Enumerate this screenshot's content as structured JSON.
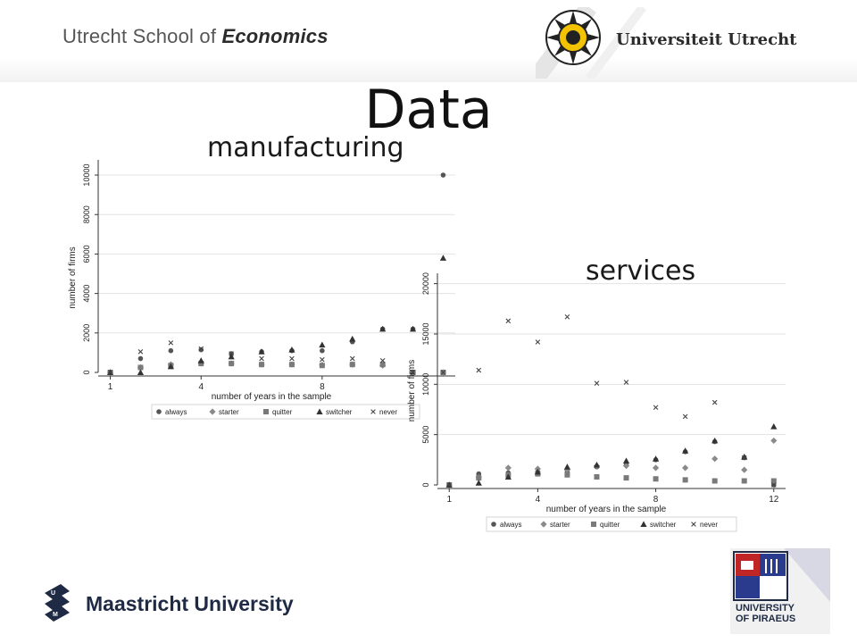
{
  "header": {
    "school_prefix": "Utrecht School of ",
    "school_emph": "Economics",
    "university": "Universiteit Utrecht"
  },
  "slide": {
    "title": "Data"
  },
  "footer": {
    "left_logo": "Maastricht University",
    "right_logo": "UNIVERSITY OF PIRAEUS"
  },
  "colors": {
    "marker": "#555555",
    "gridline": "#e3e3e3",
    "axis": "#333333"
  },
  "legend_markers": {
    "always": "dot",
    "starter": "diamond",
    "quitter": "square",
    "switcher": "triangle",
    "never": "cross"
  },
  "chart_data": [
    {
      "type": "scatter",
      "title": "manufacturing",
      "xlabel": "number of years in the sample",
      "ylabel": "number of firms",
      "xticks": [
        1,
        4,
        8
      ],
      "yticks": [
        0,
        2000,
        4000,
        6000,
        8000,
        10000
      ],
      "xlim": [
        0.6,
        12.4
      ],
      "ylim": [
        0,
        10500
      ],
      "grid": true,
      "legend_position": "bottom",
      "series": [
        {
          "name": "always",
          "x": [
            1,
            2,
            3,
            4,
            5,
            6,
            7,
            8,
            9,
            10,
            11,
            12
          ],
          "y": [
            0,
            700,
            1100,
            1150,
            950,
            1050,
            1100,
            1100,
            1550,
            2200,
            2200,
            10000
          ]
        },
        {
          "name": "starter",
          "x": [
            1,
            2,
            3,
            4,
            5,
            6,
            7,
            8,
            9,
            10,
            11,
            12
          ],
          "y": [
            0,
            250,
            400,
            450,
            450,
            400,
            400,
            380,
            400,
            350,
            0,
            0
          ]
        },
        {
          "name": "quitter",
          "x": [
            1,
            2,
            3,
            4,
            5,
            6,
            7,
            8,
            9,
            10,
            11,
            12
          ],
          "y": [
            0,
            250,
            350,
            450,
            450,
            400,
            400,
            350,
            400,
            400,
            0,
            0
          ]
        },
        {
          "name": "switcher",
          "x": [
            1,
            2,
            3,
            4,
            5,
            6,
            7,
            8,
            9,
            10,
            11,
            12
          ],
          "y": [
            0,
            0,
            300,
            600,
            800,
            1050,
            1150,
            1400,
            1700,
            2200,
            2200,
            5800
          ]
        },
        {
          "name": "never",
          "x": [
            1,
            2,
            3,
            4,
            5,
            6,
            7,
            8,
            9,
            10,
            11,
            12
          ],
          "y": [
            0,
            1050,
            1500,
            1200,
            950,
            700,
            700,
            650,
            700,
            600,
            0,
            0
          ]
        }
      ]
    },
    {
      "type": "scatter",
      "title": "services",
      "xlabel": "number of years in the sample",
      "ylabel": "number of firms",
      "xticks": [
        1,
        4,
        8,
        12
      ],
      "yticks": [
        0,
        5000,
        10000,
        15000,
        20000
      ],
      "xlim": [
        0.6,
        12.4
      ],
      "ylim": [
        0,
        20500
      ],
      "grid": true,
      "legend_position": "bottom",
      "series": [
        {
          "name": "always",
          "x": [
            1,
            2,
            3,
            4,
            5,
            6,
            7,
            8,
            9,
            10,
            11,
            12
          ],
          "y": [
            0,
            1100,
            1200,
            1300,
            1300,
            1800,
            2000,
            2500,
            3300,
            4300,
            2700,
            0
          ]
        },
        {
          "name": "starter",
          "x": [
            1,
            2,
            3,
            4,
            5,
            6,
            7,
            8,
            9,
            10,
            11,
            12
          ],
          "y": [
            0,
            750,
            1700,
            1600,
            1500,
            1900,
            1900,
            1700,
            1700,
            2600,
            1500,
            4400
          ]
        },
        {
          "name": "quitter",
          "x": [
            1,
            2,
            3,
            4,
            5,
            6,
            7,
            8,
            9,
            10,
            11,
            12
          ],
          "y": [
            0,
            700,
            1000,
            1100,
            1000,
            800,
            700,
            600,
            500,
            400,
            400,
            400
          ]
        },
        {
          "name": "switcher",
          "x": [
            1,
            2,
            3,
            4,
            5,
            6,
            7,
            8,
            9,
            10,
            11,
            12
          ],
          "y": [
            0,
            200,
            800,
            1300,
            1800,
            2000,
            2400,
            2600,
            3400,
            4400,
            2800,
            5800
          ]
        },
        {
          "name": "never",
          "x": [
            1,
            2,
            3,
            4,
            5,
            6,
            7,
            8,
            9,
            10,
            11,
            12
          ],
          "y": [
            0,
            11400,
            16300,
            14200,
            16700,
            10100,
            10200,
            7700,
            6800,
            8200,
            2700,
            0
          ]
        }
      ]
    }
  ]
}
